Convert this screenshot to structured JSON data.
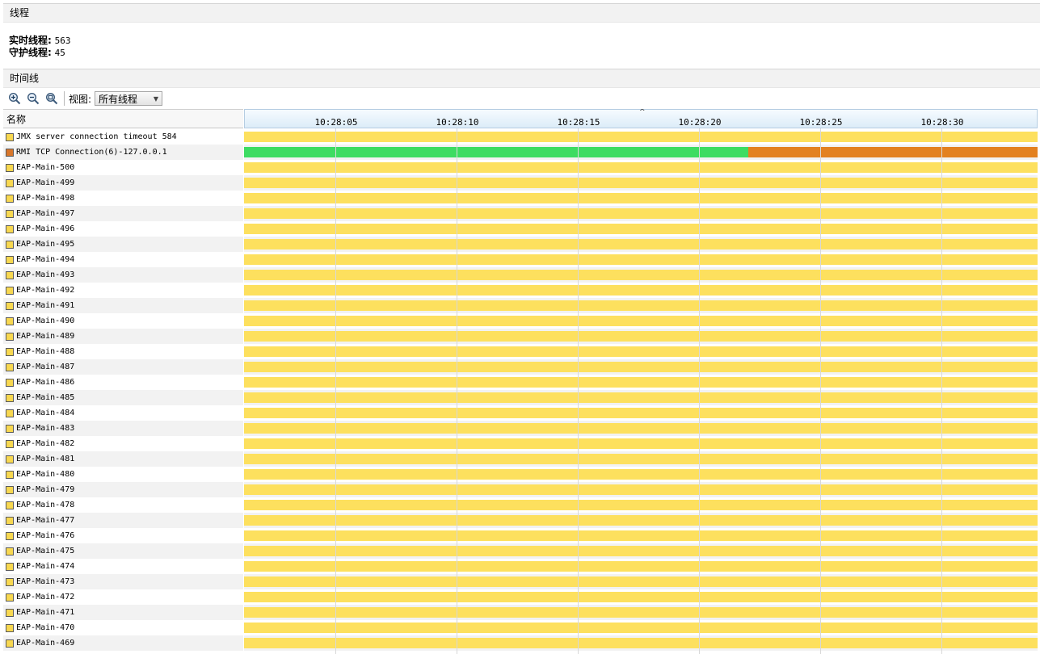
{
  "threads_section": {
    "title": "线程",
    "live_label": "实时线程:",
    "live_value": "563",
    "daemon_label": "守护线程:",
    "daemon_value": "45"
  },
  "timeline_section": {
    "title": "时间线",
    "toolbar": {
      "zoom_in_icon": "zoom-in-icon",
      "zoom_out_icon": "zoom-out-icon",
      "zoom_fit_icon": "zoom-fit-icon",
      "view_label": "视图:",
      "view_selected": "所有线程"
    }
  },
  "table": {
    "name_header": "名称",
    "time_ticks": [
      "10:28:05",
      "10:28:10",
      "10:28:15",
      "10:28:20",
      "10:28:25",
      "10:28:30"
    ],
    "rows": [
      {
        "name": "JMX server connection timeout 584",
        "state_color": "#f8d850",
        "segments": [
          {
            "from": 0,
            "to": 1,
            "color": "#fde05e"
          }
        ]
      },
      {
        "name": "RMI TCP Connection(6)-127.0.0.1",
        "state_color": "#d8762a",
        "segments": [
          {
            "from": 0,
            "to": 0.635,
            "color": "#3ddc62"
          },
          {
            "from": 0.635,
            "to": 1,
            "color": "#e38120"
          }
        ]
      },
      {
        "name": "EAP-Main-500",
        "state_color": "#f8d850",
        "segments": [
          {
            "from": 0,
            "to": 1,
            "color": "#fde05e"
          }
        ]
      },
      {
        "name": "EAP-Main-499",
        "state_color": "#f8d850",
        "segments": [
          {
            "from": 0,
            "to": 1,
            "color": "#fde05e"
          }
        ]
      },
      {
        "name": "EAP-Main-498",
        "state_color": "#f8d850",
        "segments": [
          {
            "from": 0,
            "to": 1,
            "color": "#fde05e"
          }
        ]
      },
      {
        "name": "EAP-Main-497",
        "state_color": "#f8d850",
        "segments": [
          {
            "from": 0,
            "to": 1,
            "color": "#fde05e"
          }
        ]
      },
      {
        "name": "EAP-Main-496",
        "state_color": "#f8d850",
        "segments": [
          {
            "from": 0,
            "to": 1,
            "color": "#fde05e"
          }
        ]
      },
      {
        "name": "EAP-Main-495",
        "state_color": "#f8d850",
        "segments": [
          {
            "from": 0,
            "to": 1,
            "color": "#fde05e"
          }
        ]
      },
      {
        "name": "EAP-Main-494",
        "state_color": "#f8d850",
        "segments": [
          {
            "from": 0,
            "to": 1,
            "color": "#fde05e"
          }
        ]
      },
      {
        "name": "EAP-Main-493",
        "state_color": "#f8d850",
        "segments": [
          {
            "from": 0,
            "to": 1,
            "color": "#fde05e"
          }
        ]
      },
      {
        "name": "EAP-Main-492",
        "state_color": "#f8d850",
        "segments": [
          {
            "from": 0,
            "to": 1,
            "color": "#fde05e"
          }
        ]
      },
      {
        "name": "EAP-Main-491",
        "state_color": "#f8d850",
        "segments": [
          {
            "from": 0,
            "to": 1,
            "color": "#fde05e"
          }
        ]
      },
      {
        "name": "EAP-Main-490",
        "state_color": "#f8d850",
        "segments": [
          {
            "from": 0,
            "to": 1,
            "color": "#fde05e"
          }
        ]
      },
      {
        "name": "EAP-Main-489",
        "state_color": "#f8d850",
        "segments": [
          {
            "from": 0,
            "to": 1,
            "color": "#fde05e"
          }
        ]
      },
      {
        "name": "EAP-Main-488",
        "state_color": "#f8d850",
        "segments": [
          {
            "from": 0,
            "to": 1,
            "color": "#fde05e"
          }
        ]
      },
      {
        "name": "EAP-Main-487",
        "state_color": "#f8d850",
        "segments": [
          {
            "from": 0,
            "to": 1,
            "color": "#fde05e"
          }
        ]
      },
      {
        "name": "EAP-Main-486",
        "state_color": "#f8d850",
        "segments": [
          {
            "from": 0,
            "to": 1,
            "color": "#fde05e"
          }
        ]
      },
      {
        "name": "EAP-Main-485",
        "state_color": "#f8d850",
        "segments": [
          {
            "from": 0,
            "to": 1,
            "color": "#fde05e"
          }
        ]
      },
      {
        "name": "EAP-Main-484",
        "state_color": "#f8d850",
        "segments": [
          {
            "from": 0,
            "to": 1,
            "color": "#fde05e"
          }
        ]
      },
      {
        "name": "EAP-Main-483",
        "state_color": "#f8d850",
        "segments": [
          {
            "from": 0,
            "to": 1,
            "color": "#fde05e"
          }
        ]
      },
      {
        "name": "EAP-Main-482",
        "state_color": "#f8d850",
        "segments": [
          {
            "from": 0,
            "to": 1,
            "color": "#fde05e"
          }
        ]
      },
      {
        "name": "EAP-Main-481",
        "state_color": "#f8d850",
        "segments": [
          {
            "from": 0,
            "to": 1,
            "color": "#fde05e"
          }
        ]
      },
      {
        "name": "EAP-Main-480",
        "state_color": "#f8d850",
        "segments": [
          {
            "from": 0,
            "to": 1,
            "color": "#fde05e"
          }
        ]
      },
      {
        "name": "EAP-Main-479",
        "state_color": "#f8d850",
        "segments": [
          {
            "from": 0,
            "to": 1,
            "color": "#fde05e"
          }
        ]
      },
      {
        "name": "EAP-Main-478",
        "state_color": "#f8d850",
        "segments": [
          {
            "from": 0,
            "to": 1,
            "color": "#fde05e"
          }
        ]
      },
      {
        "name": "EAP-Main-477",
        "state_color": "#f8d850",
        "segments": [
          {
            "from": 0,
            "to": 1,
            "color": "#fde05e"
          }
        ]
      },
      {
        "name": "EAP-Main-476",
        "state_color": "#f8d850",
        "segments": [
          {
            "from": 0,
            "to": 1,
            "color": "#fde05e"
          }
        ]
      },
      {
        "name": "EAP-Main-475",
        "state_color": "#f8d850",
        "segments": [
          {
            "from": 0,
            "to": 1,
            "color": "#fde05e"
          }
        ]
      },
      {
        "name": "EAP-Main-474",
        "state_color": "#f8d850",
        "segments": [
          {
            "from": 0,
            "to": 1,
            "color": "#fde05e"
          }
        ]
      },
      {
        "name": "EAP-Main-473",
        "state_color": "#f8d850",
        "segments": [
          {
            "from": 0,
            "to": 1,
            "color": "#fde05e"
          }
        ]
      },
      {
        "name": "EAP-Main-472",
        "state_color": "#f8d850",
        "segments": [
          {
            "from": 0,
            "to": 1,
            "color": "#fde05e"
          }
        ]
      },
      {
        "name": "EAP-Main-471",
        "state_color": "#f8d850",
        "segments": [
          {
            "from": 0,
            "to": 1,
            "color": "#fde05e"
          }
        ]
      },
      {
        "name": "EAP-Main-470",
        "state_color": "#f8d850",
        "segments": [
          {
            "from": 0,
            "to": 1,
            "color": "#fde05e"
          }
        ]
      },
      {
        "name": "EAP-Main-469",
        "state_color": "#f8d850",
        "segments": [
          {
            "from": 0,
            "to": 1,
            "color": "#fde05e"
          }
        ]
      }
    ]
  }
}
